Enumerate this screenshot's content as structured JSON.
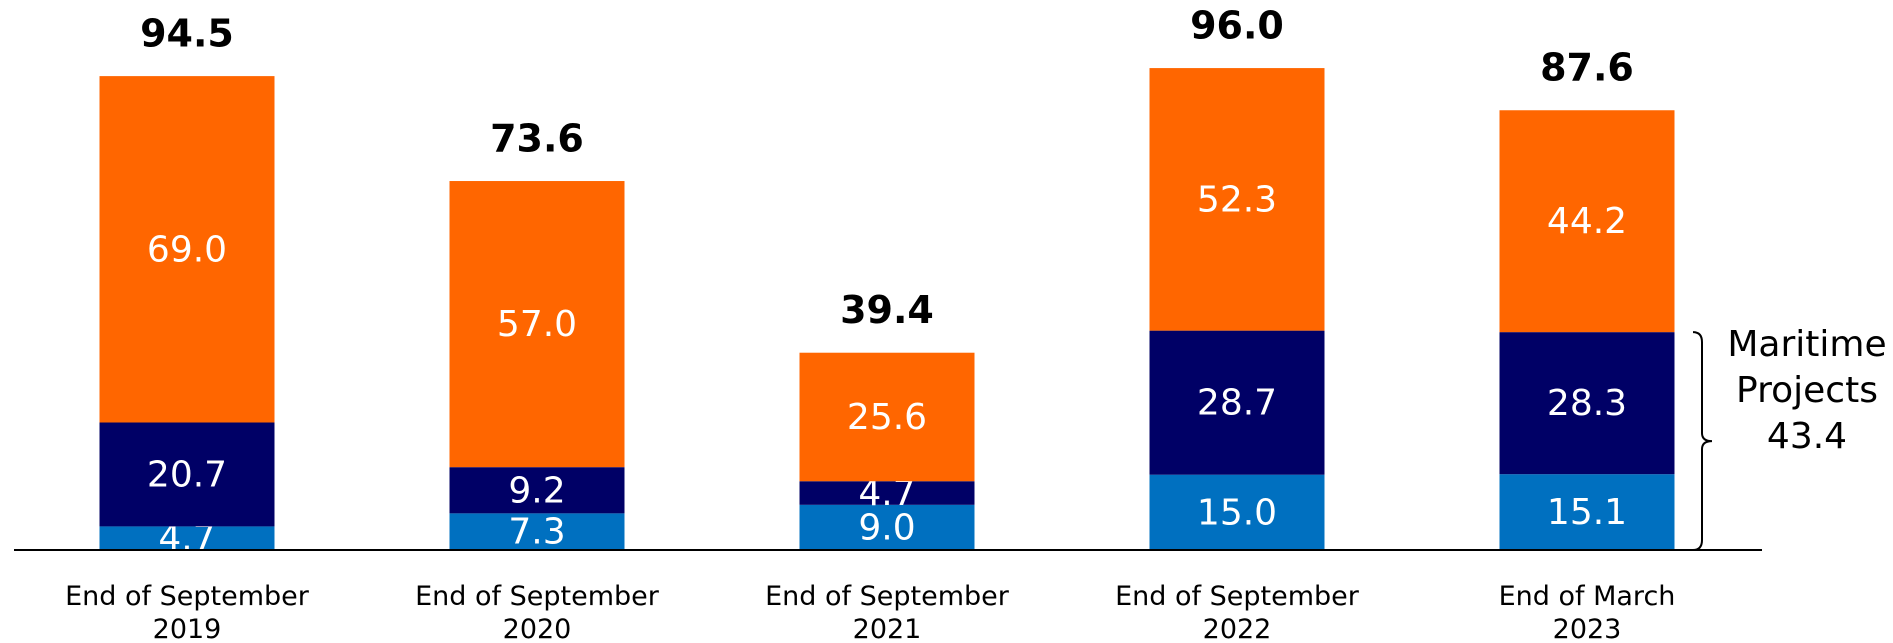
{
  "chart_data": {
    "type": "stacked_bar",
    "categories": [
      "End of September\n2019",
      "End of September\n2020",
      "End of September\n2021",
      "End of September\n2022",
      "End of March\n2023"
    ],
    "series": [
      {
        "name": null,
        "color": "#0070c0",
        "values": [
          4.7,
          7.3,
          9.0,
          15.0,
          15.1
        ],
        "value_labels": [
          "4.7",
          "7.3",
          "9.0",
          "15.0",
          "15.1"
        ]
      },
      {
        "name": null,
        "color": "#000066",
        "values": [
          20.7,
          9.2,
          4.7,
          28.7,
          28.3
        ],
        "value_labels": [
          "20.7",
          "9.2",
          "4.7",
          "28.7",
          "28.3"
        ]
      },
      {
        "name": null,
        "color": "#ff6600",
        "values": [
          69.0,
          57.0,
          25.6,
          52.3,
          44.2
        ],
        "value_labels": [
          "69.0",
          "57.0",
          "25.6",
          "52.3",
          "44.2"
        ]
      }
    ],
    "totals": [
      94.5,
      73.6,
      39.4,
      96.0,
      87.6
    ],
    "total_labels": [
      "94.5",
      "73.6",
      "39.4",
      "96.0",
      "87.6"
    ],
    "ylim": [
      0,
      100
    ],
    "annotation": {
      "label": "Maritime\nProjects",
      "value": 43.4
    }
  }
}
